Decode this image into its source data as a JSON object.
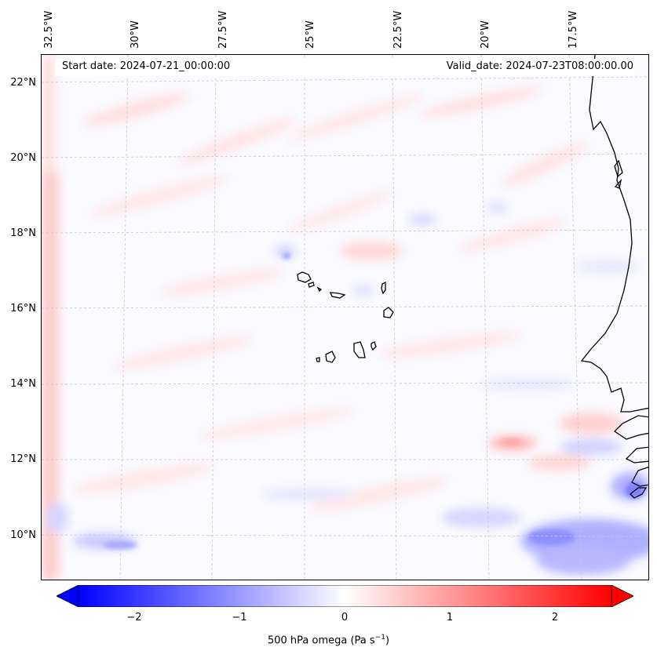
{
  "header": {
    "start_date": "Start date: 2024-07-21_00:00:00",
    "valid_date": "Valid_date: 2024-07-23T08:00:00.00"
  },
  "longitude_labels": [
    "32.5°W",
    "30°W",
    "27.5°W",
    "25°W",
    "22.5°W",
    "20°W",
    "17.5°W"
  ],
  "latitude_labels": [
    "22°N",
    "20°N",
    "18°N",
    "16°N",
    "14°N",
    "12°N",
    "10°N"
  ],
  "colorbar": {
    "ticks": [
      "−2",
      "−1",
      "0",
      "1",
      "2"
    ],
    "title": "500 hPa omega (Pa s",
    "title_sup": "−1",
    "title_end": ")",
    "range": [
      -2.6,
      2.6
    ],
    "colormap": "bwr",
    "low_color": "#0000ff",
    "mid_color": "#ffffff",
    "high_color": "#ff0000"
  },
  "map": {
    "variable": "500 hPa omega",
    "coastline_color": "#000000",
    "gridline_color": "#c8c8c8"
  }
}
